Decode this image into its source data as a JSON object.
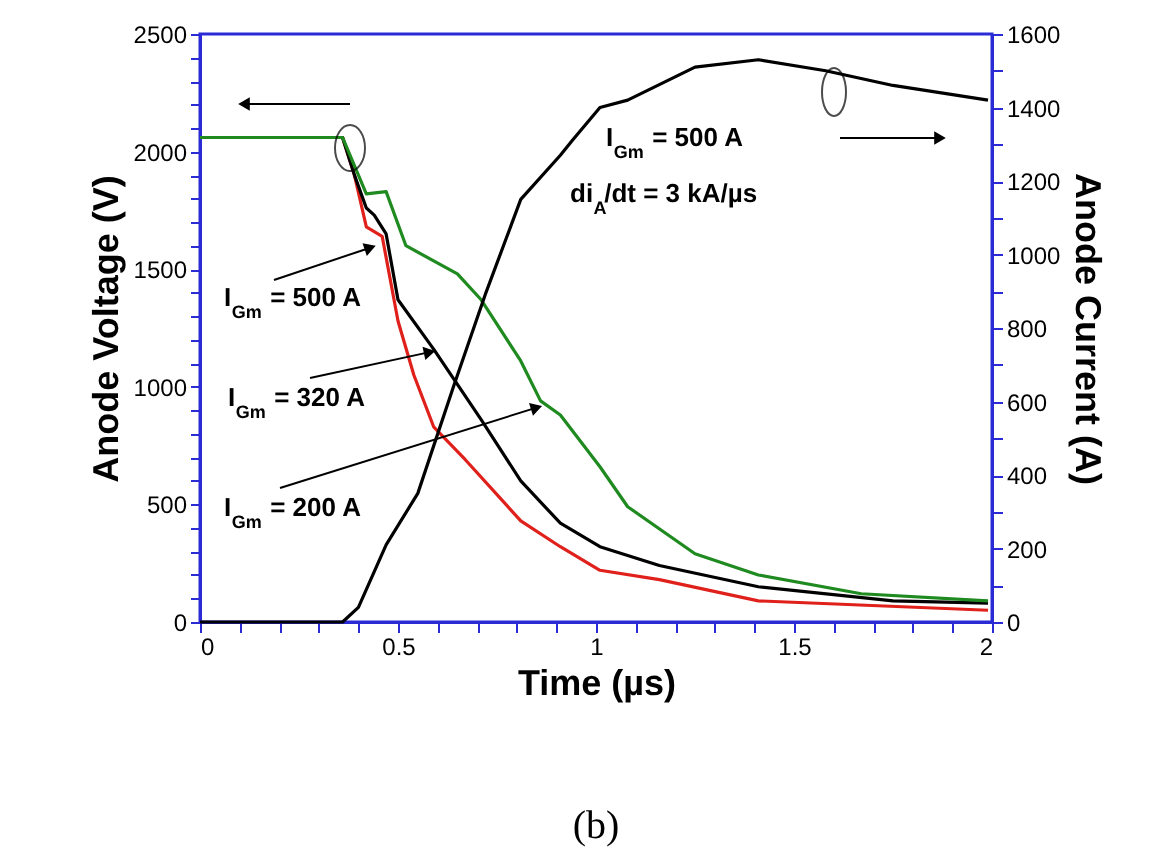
{
  "chart_data": {
    "type": "line",
    "title": "(b)",
    "xlabel": "Time (µs)",
    "ylabel": "Anode Voltage (V)",
    "y2label": "Anode Current (A)",
    "xlim": [
      0,
      2
    ],
    "ylim": [
      0,
      2500
    ],
    "y2lim": [
      0,
      1600
    ],
    "xticks": [
      0,
      {
        "value": 0.1,
        "label": null
      },
      {
        "value": 0.2,
        "label": null
      },
      {
        "value": 0.3,
        "label": null
      },
      {
        "value": 0.4,
        "label": null
      },
      0.5,
      {
        "value": 0.6,
        "label": null
      },
      {
        "value": 0.7,
        "label": null
      },
      {
        "value": 0.8,
        "label": null
      },
      {
        "value": 0.9,
        "label": null
      },
      1,
      {
        "value": 1.1,
        "label": null
      },
      {
        "value": 1.2,
        "label": null
      },
      {
        "value": 1.3,
        "label": null
      },
      {
        "value": 1.4,
        "label": null
      },
      1.5,
      {
        "value": 1.6,
        "label": null
      },
      {
        "value": 1.7,
        "label": null
      },
      {
        "value": 1.8,
        "label": null
      },
      {
        "value": 1.9,
        "label": null
      },
      2
    ],
    "yticks": [
      0,
      {
        "value": 100,
        "label": null
      },
      {
        "value": 200,
        "label": null
      },
      {
        "value": 300,
        "label": null
      },
      {
        "value": 400,
        "label": null
      },
      500,
      {
        "value": 600,
        "label": null
      },
      {
        "value": 700,
        "label": null
      },
      {
        "value": 800,
        "label": null
      },
      {
        "value": 900,
        "label": null
      },
      1000,
      {
        "value": 1100,
        "label": null
      },
      {
        "value": 1200,
        "label": null
      },
      {
        "value": 1300,
        "label": null
      },
      {
        "value": 1400,
        "label": null
      },
      1500,
      {
        "value": 1600,
        "label": null
      },
      {
        "value": 1700,
        "label": null
      },
      {
        "value": 1800,
        "label": null
      },
      {
        "value": 1900,
        "label": null
      },
      2000,
      {
        "value": 2100,
        "label": null
      },
      {
        "value": 2200,
        "label": null
      },
      {
        "value": 2300,
        "label": null
      },
      {
        "value": 2400,
        "label": null
      },
      2500
    ],
    "y2ticks": [
      0,
      {
        "value": 100,
        "label": null
      },
      200,
      {
        "value": 300,
        "label": null
      },
      400,
      {
        "value": 500,
        "label": null
      },
      600,
      {
        "value": 700,
        "label": null
      },
      800,
      {
        "value": 900,
        "label": null
      },
      1000,
      {
        "value": 1100,
        "label": null
      },
      1200,
      {
        "value": 1300,
        "label": null
      },
      1400,
      {
        "value": 1500,
        "label": null
      },
      1600
    ],
    "grid": false,
    "marker": "none",
    "line_style": "solid",
    "series": [
      {
        "color": "#e0201b",
        "x": [
          0,
          0.36,
          0.39,
          0.42,
          0.46,
          0.5,
          0.54,
          0.59,
          0.67,
          0.81,
          0.91,
          1.01,
          1.16,
          1.41,
          1.99
        ],
        "values": [
          2060,
          2060,
          1900,
          1680,
          1640,
          1280,
          1050,
          830,
          690,
          430,
          320,
          220,
          180,
          90,
          50
        ]
      },
      {
        "color": "#000000",
        "x": [
          0,
          0.36,
          0.39,
          0.42,
          0.44,
          0.47,
          0.5,
          0.59,
          0.71,
          0.81,
          0.91,
          1.01,
          1.16,
          1.41,
          1.75,
          1.99
        ],
        "values": [
          2060,
          2060,
          1900,
          1760,
          1730,
          1650,
          1370,
          1160,
          860,
          600,
          420,
          320,
          240,
          150,
          90,
          80
        ]
      },
      {
        "color": "#1f8a1f",
        "x": [
          0,
          0.36,
          0.37,
          0.42,
          0.47,
          0.52,
          0.65,
          0.71,
          0.81,
          0.86,
          0.91,
          1.01,
          1.08,
          1.25,
          1.41,
          1.67,
          1.99
        ],
        "values": [
          2060,
          2060,
          2020,
          1820,
          1830,
          1600,
          1480,
          1370,
          1110,
          940,
          880,
          660,
          490,
          290,
          200,
          120,
          90
        ]
      },
      {
        "color": "#000000",
        "axis": "y2",
        "x": [
          0,
          0.36,
          0.4,
          0.47,
          0.55,
          0.64,
          0.72,
          0.81,
          0.91,
          0.94,
          1.01,
          1.08,
          1.25,
          1.41,
          1.58,
          1.75,
          1.99
        ],
        "values": [
          0,
          0,
          40,
          210,
          350,
          640,
          890,
          1150,
          1270,
          1310,
          1400,
          1420,
          1510,
          1530,
          1500,
          1460,
          1420
        ]
      }
    ],
    "annotations": [
      {
        "text": "I$_{Gm}$ = 500 A",
        "x": 0.45,
        "y": 1600
      },
      {
        "text": "I$_{Gm}$ = 320 A",
        "x": 0.6,
        "y": 1156
      },
      {
        "text": "I$_{Gm}$ = 200 A",
        "x": 0.87,
        "y": 920
      },
      "I$_{Gm}$ = 500 A",
      "di$_{A}$/dt = 3 kA/µs"
    ]
  }
}
